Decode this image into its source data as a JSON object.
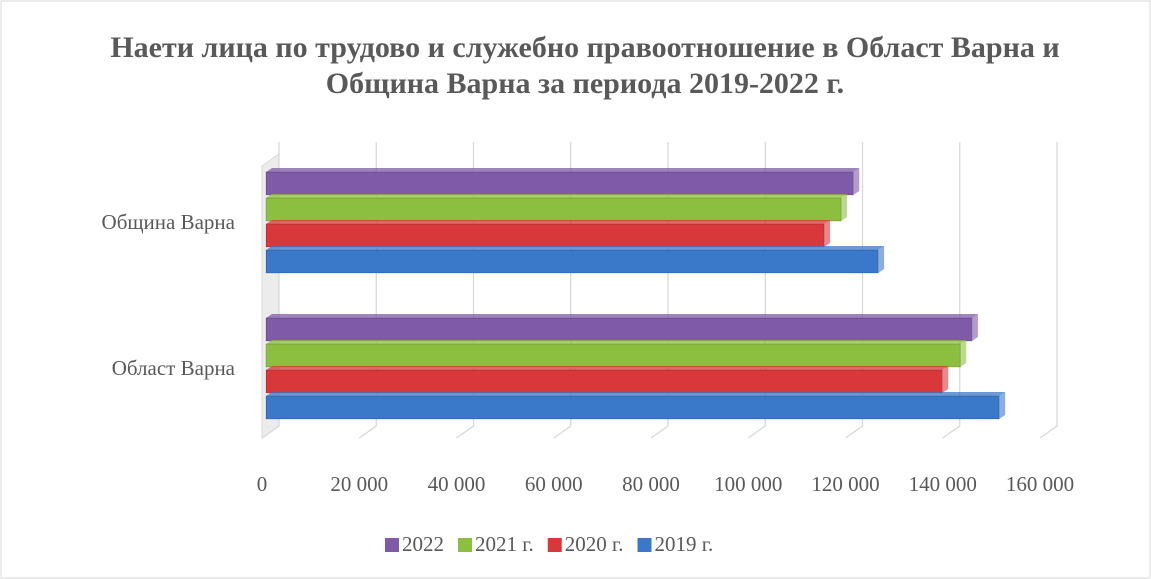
{
  "chart_data": {
    "type": "bar",
    "orientation": "horizontal",
    "title": "Наети лица по трудово и служебно правоотношение в Област Варна и Община Варна за периода 2019-2022 г.",
    "categories": [
      "Област Варна",
      "Община Варна"
    ],
    "series": [
      {
        "name": "2022",
        "color": "#7f5aa8",
        "values": [
          146000,
          121600
        ]
      },
      {
        "name": "2021 г.",
        "color": "#8cbf3f",
        "values": [
          143600,
          119100
        ]
      },
      {
        "name": "2020 г.",
        "color": "#d9383a",
        "values": [
          139900,
          115600
        ]
      },
      {
        "name": "2019 г.",
        "color": "#3a78c9",
        "values": [
          151600,
          126700
        ]
      }
    ],
    "xlim": [
      0,
      160000
    ],
    "xticks": [
      0,
      {
        "value": 20000,
        "label": "20 000"
      },
      {
        "value": 40000,
        "label": "40 000"
      },
      {
        "value": 60000,
        "label": "60 000"
      },
      {
        "value": 80000,
        "label": "80 000"
      },
      {
        "value": 100000,
        "label": "100 000"
      },
      {
        "value": 120000,
        "label": "120 000"
      },
      {
        "value": 140000,
        "label": "140 000"
      },
      {
        "value": 160000,
        "label": "160 000"
      }
    ],
    "grid": true,
    "legend": "bottom"
  }
}
